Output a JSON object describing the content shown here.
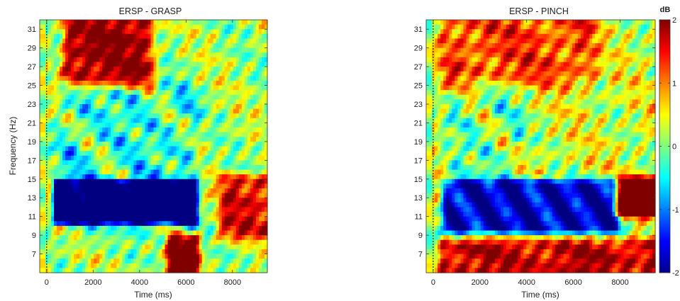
{
  "chart_data": [
    {
      "type": "heatmap",
      "title": "ERSP - GRASP",
      "xlabel": "Time (ms)",
      "ylabel": "Frequency (Hz)",
      "xlim": [
        -300,
        9500
      ],
      "ylim": [
        5,
        32
      ],
      "x_ticks": [
        0,
        2000,
        4000,
        6000,
        8000
      ],
      "y_ticks": [
        7,
        9,
        11,
        13,
        15,
        17,
        19,
        21,
        23,
        25,
        27,
        29,
        31
      ],
      "stimulus_onset_ms": 0,
      "colormap": "jet",
      "clim": [
        -2,
        2
      ],
      "features": [
        {
          "freq_range": [
            10,
            15
          ],
          "time_range": [
            300,
            6500
          ],
          "value": -2.0,
          "note": "strong desynchronization"
        },
        {
          "freq_range": [
            25,
            32
          ],
          "time_range": [
            800,
            4500
          ],
          "value": 1.8,
          "note": "strong synchronization"
        },
        {
          "freq_range": [
            5,
            9
          ],
          "time_range": [
            5200,
            6600
          ],
          "value": 1.9,
          "note": "strong synchronization"
        },
        {
          "freq_range": [
            9,
            15
          ],
          "time_range": [
            7500,
            9500
          ],
          "value": 1.4,
          "note": "rebound"
        }
      ]
    },
    {
      "type": "heatmap",
      "title": "ERSP - PINCH",
      "xlabel": "Time (ms)",
      "ylabel": "",
      "xlim": [
        -300,
        9500
      ],
      "ylim": [
        5,
        32
      ],
      "x_ticks": [
        0,
        2000,
        4000,
        6000,
        8000
      ],
      "y_ticks": [
        7,
        9,
        11,
        13,
        15,
        17,
        19,
        21,
        23,
        25,
        27,
        29,
        31
      ],
      "stimulus_onset_ms": 0,
      "colormap": "jet",
      "clim": [
        -2,
        2
      ],
      "features": [
        {
          "freq_range": [
            9,
            15
          ],
          "time_range": [
            500,
            8000
          ],
          "value": -1.8,
          "note": "desynchronization"
        },
        {
          "freq_range": [
            5,
            8.5
          ],
          "time_range": [
            300,
            9500
          ],
          "value": 1.6,
          "note": "synchronization"
        },
        {
          "freq_range": [
            11,
            15
          ],
          "time_range": [
            7800,
            9500
          ],
          "value": 1.9,
          "note": "strong rebound"
        }
      ]
    }
  ],
  "colorbar": {
    "label": "dB",
    "ticks": [
      -2,
      -1,
      0,
      1,
      2
    ]
  },
  "colors": {
    "colormap_stops": [
      "#00008f",
      "#0000ff",
      "#00ffff",
      "#ffff00",
      "#ff0000",
      "#800000"
    ]
  }
}
